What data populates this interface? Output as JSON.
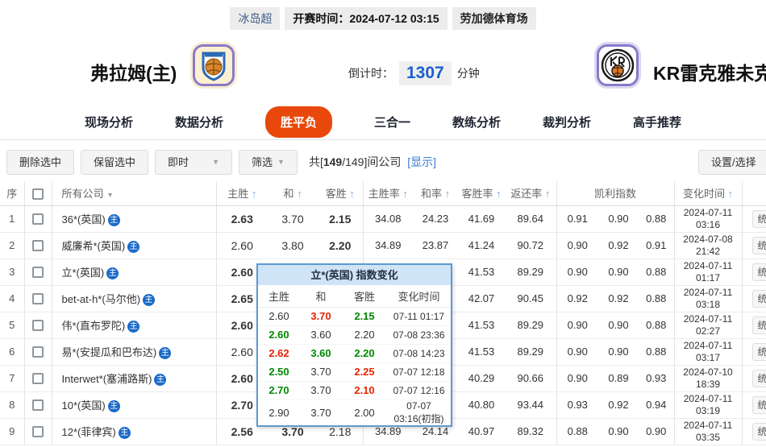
{
  "meta": {
    "league": "冰岛超",
    "kickoff": "开赛时间：2024-07-12 03:15",
    "venue": "劳加德体育场"
  },
  "teams": {
    "home_name": "弗拉姆(主)",
    "away_name": "KR雷克雅未克"
  },
  "countdown": {
    "label": "倒计时：",
    "value": "1307",
    "unit": "分钟"
  },
  "nav": {
    "items": [
      {
        "label": "现场分析",
        "active": false
      },
      {
        "label": "数据分析",
        "active": false
      },
      {
        "label": "胜平负",
        "active": true
      },
      {
        "label": "三合一",
        "active": false
      },
      {
        "label": "教练分析",
        "active": false
      },
      {
        "label": "裁判分析",
        "active": false
      },
      {
        "label": "高手推荐",
        "active": false
      }
    ]
  },
  "toolbar": {
    "delete_label": "删除选中",
    "keep_label": "保留选中",
    "instant_label": "即时",
    "filter_label": "筛选",
    "count_prefix": "共[",
    "count_bold": "149",
    "count_suffix": "/149]间公司",
    "show_link": "[显示]",
    "settings_label": "设置/选择"
  },
  "table": {
    "headers": [
      {
        "label": "序",
        "vr": true
      },
      {
        "label": "",
        "checkbox": true,
        "vr": true
      },
      {
        "label": "所有公司",
        "filter": true,
        "vr": true,
        "left": true
      },
      {
        "label": "主胜",
        "sort": true
      },
      {
        "label": "和",
        "sort": true
      },
      {
        "label": "客胜",
        "sort": true,
        "vr": true
      },
      {
        "label": "主胜率",
        "sort": true
      },
      {
        "label": "和率",
        "sort": true
      },
      {
        "label": "客胜率",
        "sort": true
      },
      {
        "label": "返还率",
        "sort": true,
        "vr": true
      },
      {
        "label": "凯利指数",
        "colspan": 3,
        "vr": true
      },
      {
        "label": "变化时间",
        "sort": true,
        "vr": true
      },
      {
        "label": ""
      }
    ],
    "rows": [
      {
        "num": "1",
        "company": "36*(英国)",
        "badge": "主",
        "odds": [
          {
            "v": "2.63",
            "c": "g"
          },
          {
            "v": "3.70",
            "c": "k"
          },
          {
            "v": "2.15",
            "c": "r"
          }
        ],
        "rates": [
          "34.08",
          "24.23",
          "41.69",
          "89.64"
        ],
        "kelly": [
          "0.91",
          "0.90",
          "0.88"
        ],
        "time": [
          "2024-07-11",
          "03:16"
        ],
        "action": "统"
      },
      {
        "num": "2",
        "company": "威廉希*(英国)",
        "badge": "主",
        "odds": [
          {
            "v": "2.60",
            "c": "k"
          },
          {
            "v": "3.80",
            "c": "k"
          },
          {
            "v": "2.20",
            "c": "r"
          }
        ],
        "rates": [
          "34.89",
          "23.87",
          "41.24",
          "90.72"
        ],
        "kelly": [
          "0.90",
          "0.92",
          "0.91"
        ],
        "time": [
          "2024-07-08",
          "21:42"
        ],
        "action": "统"
      },
      {
        "num": "3",
        "company": "立*(英国)",
        "badge": "主",
        "odds": [
          {
            "v": "2.60",
            "c": "g"
          },
          {
            "v": "",
            "c": "k"
          },
          {
            "v": "",
            "c": "k"
          }
        ],
        "rates": [
          "",
          "",
          "41.53",
          "89.29"
        ],
        "kelly": [
          "0.90",
          "0.90",
          "0.88"
        ],
        "time": [
          "2024-07-11",
          "01:17"
        ],
        "action": "统"
      },
      {
        "num": "4",
        "company": "bet-at-h*(马尔他)",
        "badge": "主",
        "odds": [
          {
            "v": "2.65",
            "c": "r"
          },
          {
            "v": "",
            "c": "k"
          },
          {
            "v": "",
            "c": "k"
          }
        ],
        "rates": [
          "",
          "",
          "42.07",
          "90.45"
        ],
        "kelly": [
          "0.92",
          "0.92",
          "0.88"
        ],
        "time": [
          "2024-07-11",
          "03:18"
        ],
        "action": "统"
      },
      {
        "num": "5",
        "company": "伟*(直布罗陀)",
        "badge": "主",
        "odds": [
          {
            "v": "2.60",
            "c": "g"
          },
          {
            "v": "",
            "c": "k"
          },
          {
            "v": "",
            "c": "k"
          }
        ],
        "rates": [
          "",
          "",
          "41.53",
          "89.29"
        ],
        "kelly": [
          "0.90",
          "0.90",
          "0.88"
        ],
        "time": [
          "2024-07-11",
          "02:27"
        ],
        "action": "统"
      },
      {
        "num": "6",
        "company": "易*(安提瓜和巴布达)",
        "badge": "主",
        "odds": [
          {
            "v": "2.60",
            "c": "k"
          },
          {
            "v": "",
            "c": "k"
          },
          {
            "v": "",
            "c": "k"
          }
        ],
        "rates": [
          "",
          "",
          "41.53",
          "89.29"
        ],
        "kelly": [
          "0.90",
          "0.90",
          "0.88"
        ],
        "time": [
          "2024-07-11",
          "03:17"
        ],
        "action": "统"
      },
      {
        "num": "7",
        "company": "Interwet*(塞浦路斯)",
        "badge": "主",
        "odds": [
          {
            "v": "2.60",
            "c": "g"
          },
          {
            "v": "",
            "c": "k"
          },
          {
            "v": "",
            "c": "k"
          }
        ],
        "rates": [
          "",
          "",
          "40.29",
          "90.66"
        ],
        "kelly": [
          "0.90",
          "0.89",
          "0.93"
        ],
        "time": [
          "2024-07-10",
          "18:39"
        ],
        "action": "统"
      },
      {
        "num": "8",
        "company": "10*(英国)",
        "badge": "主",
        "odds": [
          {
            "v": "2.70",
            "c": "g"
          },
          {
            "v": "",
            "c": "k"
          },
          {
            "v": "",
            "c": "k"
          }
        ],
        "rates": [
          "",
          "",
          "40.80",
          "93.44"
        ],
        "kelly": [
          "0.93",
          "0.92",
          "0.94"
        ],
        "time": [
          "2024-07-11",
          "03:19"
        ],
        "action": "统"
      },
      {
        "num": "9",
        "company": "12*(菲律宾)",
        "badge": "主",
        "odds": [
          {
            "v": "2.56",
            "c": "g"
          },
          {
            "v": "3.70",
            "c": "r"
          },
          {
            "v": "2.18",
            "c": "k"
          }
        ],
        "rates": [
          "34.89",
          "24.14",
          "40.97",
          "89.32"
        ],
        "kelly": [
          "0.88",
          "0.90",
          "0.90"
        ],
        "time": [
          "2024-07-11",
          "03:35"
        ],
        "action": "统"
      }
    ]
  },
  "popup": {
    "title": "立*(英国) 指数变化",
    "headers": [
      "主胜",
      "和",
      "客胜",
      "变化时间"
    ],
    "rows": [
      [
        {
          "v": "2.60",
          "c": "k"
        },
        {
          "v": "3.70",
          "c": "r"
        },
        {
          "v": "2.15",
          "c": "g"
        },
        {
          "v": "07-11 01:17",
          "c": "t"
        }
      ],
      [
        {
          "v": "2.60",
          "c": "g"
        },
        {
          "v": "3.60",
          "c": "k"
        },
        {
          "v": "2.20",
          "c": "k"
        },
        {
          "v": "07-08 23:36",
          "c": "t"
        }
      ],
      [
        {
          "v": "2.62",
          "c": "r"
        },
        {
          "v": "3.60",
          "c": "g"
        },
        {
          "v": "2.20",
          "c": "g"
        },
        {
          "v": "07-08 14:23",
          "c": "t"
        }
      ],
      [
        {
          "v": "2.50",
          "c": "g"
        },
        {
          "v": "3.70",
          "c": "k"
        },
        {
          "v": "2.25",
          "c": "r"
        },
        {
          "v": "07-07 12:18",
          "c": "t"
        }
      ],
      [
        {
          "v": "2.70",
          "c": "g"
        },
        {
          "v": "3.70",
          "c": "k"
        },
        {
          "v": "2.10",
          "c": "r"
        },
        {
          "v": "07-07 12:16",
          "c": "t"
        }
      ],
      [
        {
          "v": "2.90",
          "c": "k"
        },
        {
          "v": "3.70",
          "c": "k"
        },
        {
          "v": "2.00",
          "c": "k"
        },
        {
          "v": "07-07 03:16(初指)",
          "c": "t"
        }
      ]
    ]
  },
  "colors": {
    "accent_orange": "#e8480c",
    "odds_green": "#008800",
    "odds_red": "#e62300",
    "link_blue": "#3a7bd5",
    "countdown_blue": "#1a5fd0",
    "popup_border": "#5e9ad0",
    "popup_header_bg": "#cfe4f7",
    "badge_blue": "#1b6ac9"
  }
}
